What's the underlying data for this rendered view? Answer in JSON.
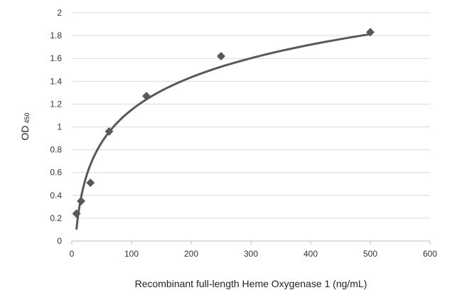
{
  "chart_data": {
    "type": "scatter",
    "title": "",
    "xlabel": "Recombinant full-length Heme Oxygenase 1 (ng/mL)",
    "ylabel": "OD",
    "ylabel_subscript": "450",
    "xlim": [
      0,
      600
    ],
    "ylim": [
      0,
      2
    ],
    "x_ticks": [
      "0",
      "100",
      "200",
      "300",
      "400",
      "500",
      "600"
    ],
    "y_ticks": [
      "0",
      "0.2",
      "0.4",
      "0.6",
      "0.8",
      "1",
      "1.2",
      "1.4",
      "1.6",
      "1.8",
      "2"
    ],
    "grid": "horizontal",
    "legend": "none",
    "series": [
      {
        "marker": "diamond",
        "color": "#595959",
        "points": [
          {
            "x": 7.8,
            "y": 0.24
          },
          {
            "x": 15.6,
            "y": 0.35
          },
          {
            "x": 31.25,
            "y": 0.51
          },
          {
            "x": 62.5,
            "y": 0.96
          },
          {
            "x": 125,
            "y": 1.27
          },
          {
            "x": 250,
            "y": 1.62
          },
          {
            "x": 500,
            "y": 1.83
          }
        ]
      }
    ],
    "trendline": {
      "type": "logarithmic",
      "color": "#595959",
      "a": 0.4123,
      "b": -0.7497,
      "x_start": 8,
      "x_end": 500
    },
    "colors": {
      "gridline": "#d9d9d9",
      "axis": "#bfbfbf"
    }
  }
}
